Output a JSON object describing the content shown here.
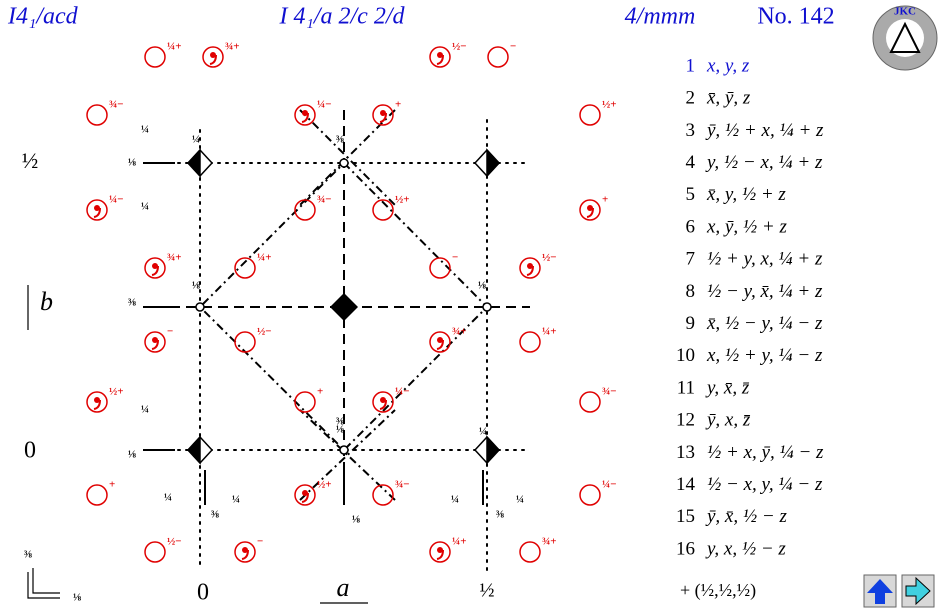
{
  "header": {
    "short_symbol": "I4₁/acd",
    "full_symbol": "I 4₁/a 2/c 2/d",
    "point_group": "4/mmm",
    "number": "No. 142"
  },
  "diagram": {
    "axis_b": "b",
    "axis_a": "a",
    "left_labels": [
      "½",
      "0"
    ],
    "bottom_labels": [
      "0",
      "½"
    ],
    "corner_labels": [
      "⅜",
      "⅛"
    ],
    "positions": [
      {
        "comma": false,
        "label": "¼+"
      },
      {
        "comma": true,
        "label": "¾+"
      },
      {
        "comma": true,
        "label": "½−"
      },
      {
        "comma": false,
        "label": "−"
      },
      {
        "comma": false,
        "label": "¾−"
      },
      {
        "comma": true,
        "label": "¼−"
      },
      {
        "comma": true,
        "label": "+"
      },
      {
        "comma": false,
        "label": "½+"
      },
      {
        "comma": true,
        "label": "¼−"
      },
      {
        "comma": false,
        "label": "¾−"
      },
      {
        "comma": false,
        "label": "½+"
      },
      {
        "comma": true,
        "label": "+"
      },
      {
        "comma": true,
        "label": "¾+"
      },
      {
        "comma": false,
        "label": "¼+"
      },
      {
        "comma": false,
        "label": "−"
      },
      {
        "comma": true,
        "label": "½−"
      },
      {
        "comma": true,
        "label": "−"
      },
      {
        "comma": false,
        "label": "½−"
      },
      {
        "comma": true,
        "label": "¾+"
      },
      {
        "comma": false,
        "label": "¼+"
      },
      {
        "comma": true,
        "label": "½+"
      },
      {
        "comma": false,
        "label": "+"
      },
      {
        "comma": true,
        "label": "¼−"
      },
      {
        "comma": false,
        "label": "¾−"
      },
      {
        "comma": false,
        "label": "+"
      },
      {
        "comma": true,
        "label": "½+"
      },
      {
        "comma": false,
        "label": "¾−"
      },
      {
        "comma": false,
        "label": "¼−"
      },
      {
        "comma": false,
        "label": "½−"
      },
      {
        "comma": true,
        "label": "−"
      },
      {
        "comma": true,
        "label": "¼+"
      },
      {
        "comma": false,
        "label": "¾+"
      }
    ],
    "element_labels": [
      "¼",
      "⅛",
      "¼",
      "¼",
      "⅜",
      "⅛",
      "⅜",
      "⅛",
      "⅛",
      "¼",
      "⅛",
      "¼",
      "⅜",
      "¼",
      "⅛",
      "¼",
      "⅜",
      "¼",
      "¼",
      "⅜",
      "¼",
      "⅛",
      "⅜",
      "⅛"
    ]
  },
  "coordinates": {
    "numbers": [
      "1",
      "2",
      "3",
      "4",
      "5",
      "6",
      "7",
      "8",
      "9",
      "10",
      "11",
      "12",
      "13",
      "14",
      "15",
      "16"
    ],
    "entries": [
      "x, y, z",
      "x̄, ȳ, z",
      "ȳ, ½ + x, ¼ + z",
      "y, ½ − x, ¼ + z",
      "x̄, y, ½ + z",
      "x, ȳ, ½ + z",
      "½ + y, x, ¼ + z",
      "½ − y, x̄, ¼ + z",
      "x̄, ½ − y, ¼ − z",
      "x, ½ + y, ¼ − z",
      "y, x̄, z̄",
      "ȳ, x, z̄",
      "½ + x, ȳ, ¼ − z",
      "½ − x, y, ¼ − z",
      "ȳ, x̄, ½ − z",
      "y, x, ½ − z"
    ],
    "centering": "+ (½,½,½)"
  }
}
